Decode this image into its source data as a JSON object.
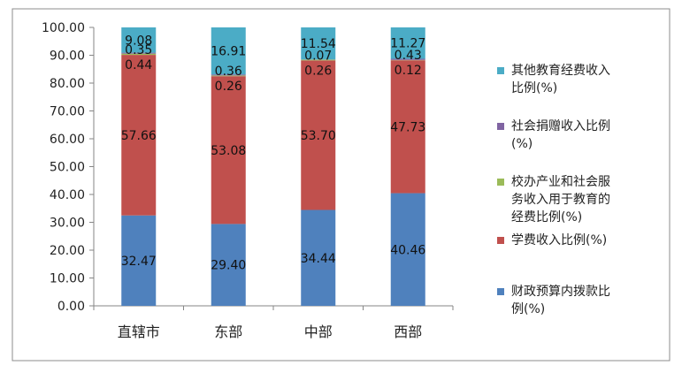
{
  "chart_data": {
    "type": "bar",
    "stacked": true,
    "categories": [
      "直辖市",
      "东部",
      "中部",
      "西部"
    ],
    "ylim": [
      0,
      100
    ],
    "yticks": [
      "0.00",
      "10.00",
      "20.00",
      "30.00",
      "40.00",
      "50.00",
      "60.00",
      "70.00",
      "80.00",
      "90.00",
      "100.00"
    ],
    "grid": false,
    "legend_position": "right",
    "series": [
      {
        "name": "财政预算内拨款比例(%)",
        "color": "#4F81BD",
        "values": [
          32.47,
          29.4,
          34.44,
          40.46
        ],
        "labels": [
          "32.47",
          "29.40",
          "34.44",
          "40.46"
        ]
      },
      {
        "name": "学费收入比例(%)",
        "color": "#C0504D",
        "values": [
          57.66,
          53.08,
          53.7,
          47.73
        ],
        "labels": [
          "57.66",
          "53.08",
          "53.70",
          "47.73"
        ]
      },
      {
        "name": "校办产业和社会服务收入用于教育的经费比例(%)",
        "color": "#9BBB59",
        "values": [
          0.44,
          0.26,
          0.26,
          0.12
        ],
        "labels": [
          "0.44",
          "0.26",
          "0.26",
          "0.12"
        ]
      },
      {
        "name": "社会捐赠收入比例(%)",
        "color": "#8064A2",
        "values": [
          0.35,
          0.36,
          0.07,
          0.43
        ],
        "labels": [
          "0.35",
          "0.36",
          "0.07",
          "0.43"
        ]
      },
      {
        "name": "其他教育经费收入比例(%)",
        "color": "#4BACC6",
        "values": [
          9.08,
          16.91,
          11.54,
          11.27
        ],
        "labels": [
          "9.08",
          "16.91",
          "11.54",
          "11.27"
        ]
      }
    ],
    "legend_order": [
      {
        "lines": [
          "其他教育经费收入",
          "比例(%)"
        ],
        "color": "#4BACC6"
      },
      {
        "lines": [
          "社会捐赠收入比例",
          "(%)"
        ],
        "color": "#8064A2"
      },
      {
        "lines": [
          "校办产业和社会服",
          "务收入用于教育的",
          "经费比例(%)"
        ],
        "color": "#9BBB59"
      },
      {
        "lines": [
          "学费收入比例(%)"
        ],
        "color": "#C0504D"
      },
      {
        "lines": [
          "财政预算内拨款比",
          "例(%)"
        ],
        "color": "#4F81BD"
      }
    ]
  }
}
